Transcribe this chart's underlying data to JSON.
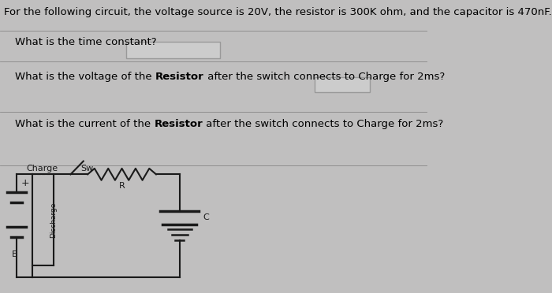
{
  "bg_color": "#c0bfbf",
  "text_color": "#000000",
  "title_line": "For the following circuit, the voltage source is 20V, the resistor is 300K ohm, and the capacitor is 470nF.",
  "q1": "What is the time constant?",
  "q2_prefix": "What is the voltage of the ",
  "q2_bold": "Resistor",
  "q2_suffix": " after the switch connects to Charge for 2ms?",
  "q3_prefix": "What is the current of the ",
  "q3_bold": "Resistor",
  "q3_suffix": " after the switch connects to Charge for 2ms?",
  "font_size_title": 9.5,
  "font_size_q": 9.5,
  "font_size_circuit": 8.0,
  "line_color": "#1a1a1a",
  "sep_color": "#888888",
  "box_face": "#cccccc",
  "box_edge": "#999999"
}
